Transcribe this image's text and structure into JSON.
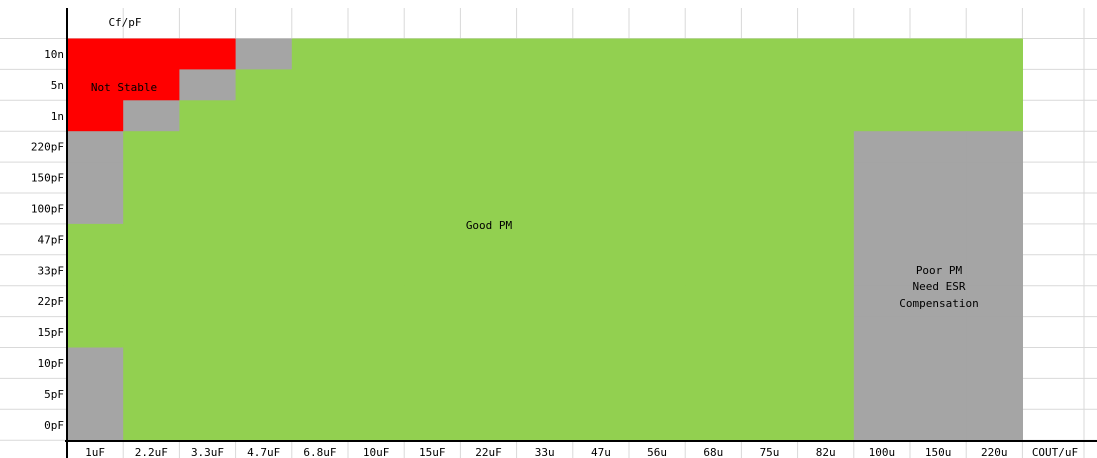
{
  "chart_data": {
    "type": "heatmap",
    "title": "",
    "corner_label": "Cf/pF",
    "x_axis_label": "COUT/uF",
    "x_categories": [
      "1uF",
      "2.2uF",
      "3.3uF",
      "4.7uF",
      "6.8uF",
      "10uF",
      "15uF",
      "22uF",
      "33u",
      "47u",
      "56u",
      "68u",
      "75u",
      "82u",
      "100u",
      "150u",
      "220u"
    ],
    "y_categories": [
      "10n",
      "5n",
      "1n",
      "220pF",
      "150pF",
      "100pF",
      "47pF",
      "33pF",
      "22pF",
      "15pF",
      "10pF",
      "5pF",
      "0pF"
    ],
    "legend": {
      "not_stable": "Not Stable",
      "good": "Good PM",
      "poor_lines": [
        "Poor PM",
        "Need ESR",
        "Compensation"
      ]
    },
    "colors": {
      "not_stable": "#ff0000",
      "good": "#92d050",
      "poor": "#a5a5a5",
      "grid": "#d9d9d9",
      "axis": "#000000",
      "background": "#ffffff"
    },
    "status_codes": {
      "R": "not_stable",
      "G": "good",
      "P": "poor"
    },
    "cells": [
      [
        "R",
        "R",
        "R",
        "P",
        "G",
        "G",
        "G",
        "G",
        "G",
        "G",
        "G",
        "G",
        "G",
        "G",
        "G",
        "G",
        "G"
      ],
      [
        "R",
        "R",
        "P",
        "G",
        "G",
        "G",
        "G",
        "G",
        "G",
        "G",
        "G",
        "G",
        "G",
        "G",
        "G",
        "G",
        "G"
      ],
      [
        "R",
        "P",
        "G",
        "G",
        "G",
        "G",
        "G",
        "G",
        "G",
        "G",
        "G",
        "G",
        "G",
        "G",
        "G",
        "G",
        "G"
      ],
      [
        "P",
        "G",
        "G",
        "G",
        "G",
        "G",
        "G",
        "G",
        "G",
        "G",
        "G",
        "G",
        "G",
        "G",
        "P",
        "P",
        "P"
      ],
      [
        "P",
        "G",
        "G",
        "G",
        "G",
        "G",
        "G",
        "G",
        "G",
        "G",
        "G",
        "G",
        "G",
        "G",
        "P",
        "P",
        "P"
      ],
      [
        "P",
        "G",
        "G",
        "G",
        "G",
        "G",
        "G",
        "G",
        "G",
        "G",
        "G",
        "G",
        "G",
        "G",
        "P",
        "P",
        "P"
      ],
      [
        "G",
        "G",
        "G",
        "G",
        "G",
        "G",
        "G",
        "G",
        "G",
        "G",
        "G",
        "G",
        "G",
        "G",
        "P",
        "P",
        "P"
      ],
      [
        "G",
        "G",
        "G",
        "G",
        "G",
        "G",
        "G",
        "G",
        "G",
        "G",
        "G",
        "G",
        "G",
        "G",
        "P",
        "P",
        "P"
      ],
      [
        "G",
        "G",
        "G",
        "G",
        "G",
        "G",
        "G",
        "G",
        "G",
        "G",
        "G",
        "G",
        "G",
        "G",
        "P",
        "P",
        "P"
      ],
      [
        "G",
        "G",
        "G",
        "G",
        "G",
        "G",
        "G",
        "G",
        "G",
        "G",
        "G",
        "G",
        "G",
        "G",
        "P",
        "P",
        "P"
      ],
      [
        "P",
        "G",
        "G",
        "G",
        "G",
        "G",
        "G",
        "G",
        "G",
        "G",
        "G",
        "G",
        "G",
        "G",
        "P",
        "P",
        "P"
      ],
      [
        "P",
        "G",
        "G",
        "G",
        "G",
        "G",
        "G",
        "G",
        "G",
        "G",
        "G",
        "G",
        "G",
        "G",
        "P",
        "P",
        "P"
      ],
      [
        "P",
        "G",
        "G",
        "G",
        "G",
        "G",
        "G",
        "G",
        "G",
        "G",
        "G",
        "G",
        "G",
        "G",
        "P",
        "P",
        "P"
      ]
    ]
  }
}
